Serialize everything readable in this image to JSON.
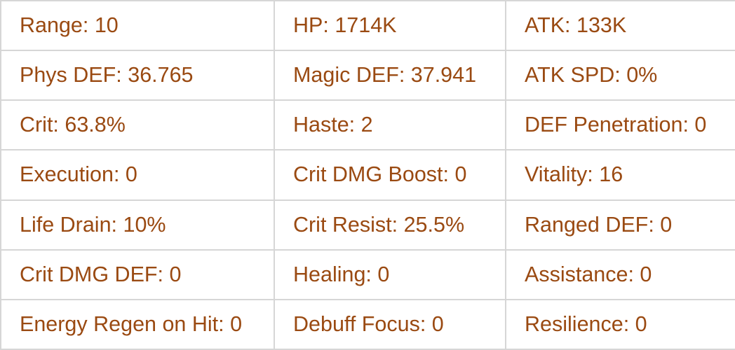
{
  "text_color": "#9a4a12",
  "rows": [
    [
      "Range: 10",
      "HP: 1714K",
      "ATK: 133K"
    ],
    [
      "Phys DEF: 36.765",
      "Magic DEF: 37.941",
      "ATK SPD: 0%"
    ],
    [
      "Crit: 63.8%",
      "Haste: 2",
      "DEF Penetration: 0"
    ],
    [
      "Execution: 0",
      "Crit DMG Boost: 0",
      "Vitality: 16"
    ],
    [
      "Life Drain: 10%",
      "Crit Resist: 25.5%",
      "Ranged DEF: 0"
    ],
    [
      "Crit DMG DEF: 0",
      "Healing: 0",
      "Assistance: 0"
    ],
    [
      "Energy Regen on Hit: 0",
      "Debuff Focus: 0",
      "Resilience: 0"
    ]
  ]
}
